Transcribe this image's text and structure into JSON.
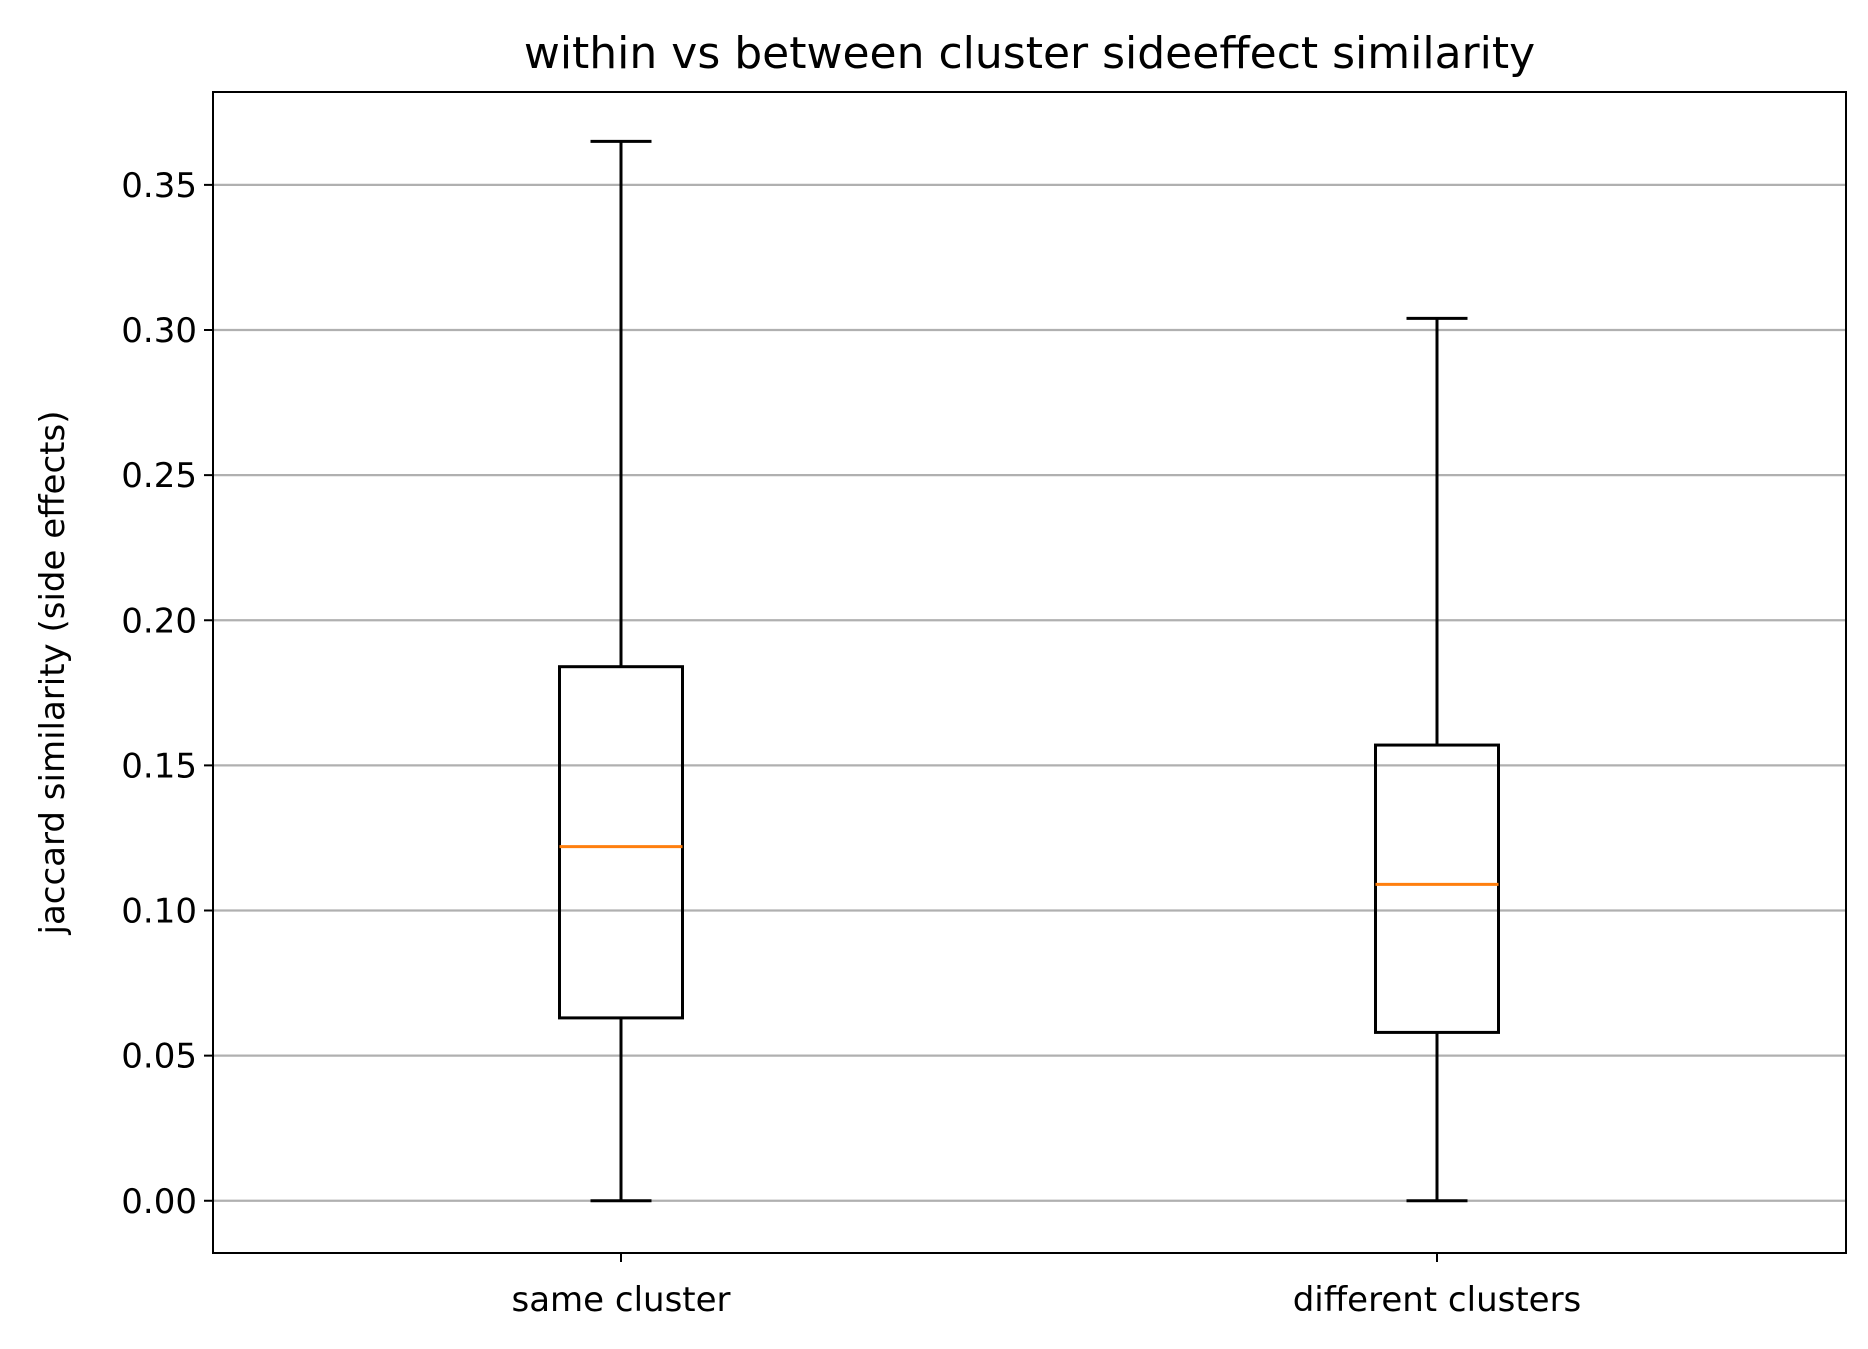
{
  "chart_data": {
    "type": "box",
    "title": "within vs between cluster sideeffect similarity",
    "xlabel": "",
    "ylabel": "jaccard similarity (side effects)",
    "ylim": [
      -0.018,
      0.382
    ],
    "yticks": [
      0.0,
      0.05,
      0.1,
      0.15,
      0.2,
      0.25,
      0.3,
      0.35
    ],
    "ytick_labels": [
      "0.00",
      "0.05",
      "0.10",
      "0.15",
      "0.20",
      "0.25",
      "0.30",
      "0.35"
    ],
    "grid": "y",
    "categories": [
      "same cluster",
      "different clusters"
    ],
    "boxes": [
      {
        "label": "same cluster",
        "whisker_low": 0.0,
        "q1": 0.063,
        "median": 0.122,
        "q3": 0.184,
        "whisker_high": 0.365
      },
      {
        "label": "different clusters",
        "whisker_low": 0.0,
        "q1": 0.058,
        "median": 0.109,
        "q3": 0.157,
        "whisker_high": 0.304
      }
    ],
    "colors": {
      "median": "#ff7f0e",
      "box": "#000000",
      "grid": "#b0b0b0"
    }
  }
}
